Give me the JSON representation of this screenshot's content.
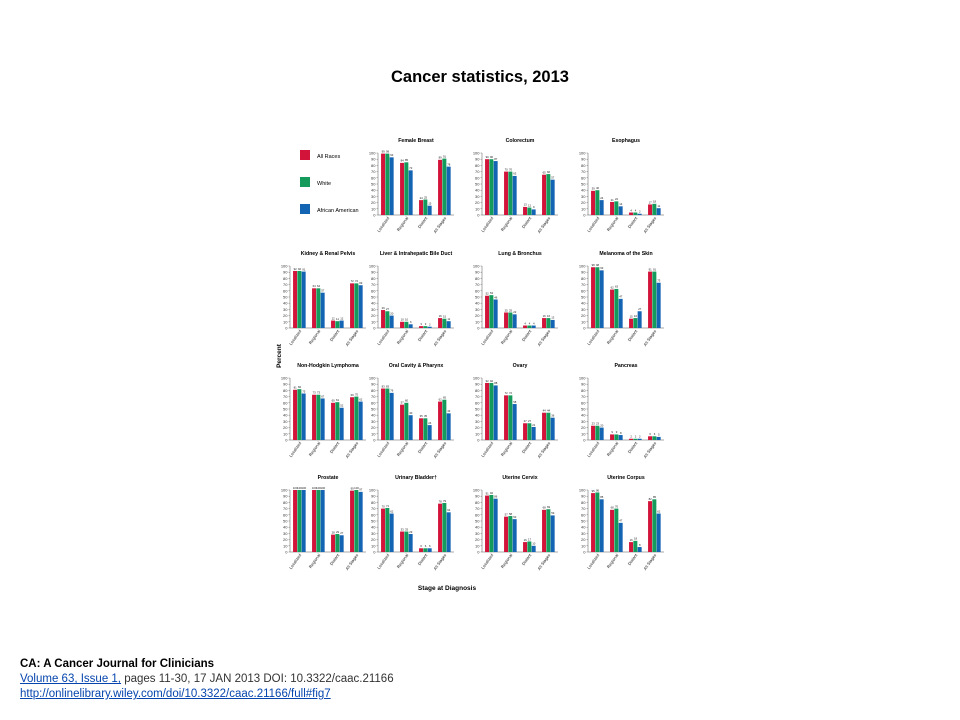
{
  "slide": {
    "title": "Cancer statistics, 2013"
  },
  "citation": {
    "journal": "CA: A Cancer Journal for Clinicians",
    "volume_link": "Volume 63, Issue 1,",
    "details": " pages 11-30, 17 JAN 2013 DOI: 10.3322/caac.21166",
    "url": "http://onlinelibrary.wiley.com/doi/10.3322/caac.21166/full#fig7"
  },
  "colors": {
    "all_races": "#d2143a",
    "white": "#149a5a",
    "african_american": "#1464b4"
  },
  "chart_data": {
    "type": "bar",
    "ylabel": "Percent",
    "xlabel": "Stage at Diagnosis",
    "ylim": [
      0,
      100
    ],
    "y_ticks": [
      0,
      10,
      20,
      30,
      40,
      50,
      60,
      70,
      80,
      90,
      100
    ],
    "categories": [
      "Localized",
      "Regional",
      "Distant",
      "All Stages"
    ],
    "legend": [
      "All Races",
      "White",
      "African American"
    ],
    "panels": [
      {
        "title": "Female Breast",
        "series": [
          {
            "name": "All Races",
            "values": [
              99,
              84,
              24,
              89
            ]
          },
          {
            "name": "White",
            "values": [
              99,
              85,
              25,
              91
            ]
          },
          {
            "name": "African American",
            "values": [
              93,
              72,
              15,
              78
            ]
          }
        ]
      },
      {
        "title": "Colorectum",
        "series": [
          {
            "name": "All Races",
            "values": [
              90,
              70,
              13,
              65
            ]
          },
          {
            "name": "White",
            "values": [
              90,
              70,
              12,
              66
            ]
          },
          {
            "name": "African American",
            "values": [
              87,
              63,
              9,
              57
            ]
          }
        ]
      },
      {
        "title": "Esophagus",
        "series": [
          {
            "name": "All Races",
            "values": [
              39,
              21,
              4,
              17
            ]
          },
          {
            "name": "White",
            "values": [
              40,
              22,
              4,
              18
            ]
          },
          {
            "name": "African American",
            "values": [
              24,
              14,
              2,
              11
            ]
          }
        ]
      },
      {
        "title": "Kidney & Renal Pelvis",
        "series": [
          {
            "name": "All Races",
            "values": [
              92,
              64,
              12,
              72
            ]
          },
          {
            "name": "White",
            "values": [
              92,
              64,
              11,
              72
            ]
          },
          {
            "name": "African American",
            "values": [
              91,
              57,
              12,
              69
            ]
          }
        ]
      },
      {
        "title": "Liver & Intrahepatic Bile Duct",
        "series": [
          {
            "name": "All Races",
            "values": [
              29,
              10,
              3,
              16
            ]
          },
          {
            "name": "White",
            "values": [
              27,
              10,
              3,
              15
            ]
          },
          {
            "name": "African American",
            "values": [
              20,
              6,
              2,
              11
            ]
          }
        ]
      },
      {
        "title": "Lung & Bronchus",
        "series": [
          {
            "name": "All Races",
            "values": [
              52,
              25,
              4,
              16
            ]
          },
          {
            "name": "White",
            "values": [
              53,
              25,
              4,
              16
            ]
          },
          {
            "name": "African American",
            "values": [
              46,
              22,
              4,
              13
            ]
          }
        ]
      },
      {
        "title": "Melanoma of the Skin",
        "series": [
          {
            "name": "All Races",
            "values": [
              98,
              62,
              15,
              91
            ]
          },
          {
            "name": "White",
            "values": [
              98,
              63,
              16,
              91
            ]
          },
          {
            "name": "African American",
            "values": [
              93,
              47,
              27,
              73
            ]
          }
        ]
      },
      {
        "title": "Non-Hodgkin Lymphoma",
        "series": [
          {
            "name": "All Races",
            "values": [
              81,
              73,
              60,
              69
            ]
          },
          {
            "name": "White",
            "values": [
              82,
              73,
              61,
              70
            ]
          },
          {
            "name": "African American",
            "values": [
              75,
              67,
              52,
              62
            ]
          }
        ]
      },
      {
        "title": "Oral Cavity & Pharynx",
        "series": [
          {
            "name": "All Races",
            "values": [
              83,
              57,
              35,
              62
            ]
          },
          {
            "name": "White",
            "values": [
              83,
              60,
              35,
              65
            ]
          },
          {
            "name": "African American",
            "values": [
              76,
              40,
              24,
              43
            ]
          }
        ]
      },
      {
        "title": "Ovary",
        "series": [
          {
            "name": "All Races",
            "values": [
              92,
              72,
              27,
              44
            ]
          },
          {
            "name": "White",
            "values": [
              92,
              72,
              27,
              44
            ]
          },
          {
            "name": "African American",
            "values": [
              88,
              58,
              21,
              36
            ]
          }
        ]
      },
      {
        "title": "Pancreas",
        "series": [
          {
            "name": "All Races",
            "values": [
              23,
              9,
              2,
              6
            ]
          },
          {
            "name": "White",
            "values": [
              23,
              9,
              2,
              6
            ]
          },
          {
            "name": "African American",
            "values": [
              20,
              8,
              2,
              5
            ]
          }
        ]
      },
      {
        "title": "Prostate",
        "series": [
          {
            "name": "All Races",
            "values": [
              100,
              100,
              28,
              99
            ]
          },
          {
            "name": "White",
            "values": [
              100,
              100,
              29,
              100
            ]
          },
          {
            "name": "African American",
            "values": [
              100,
              100,
              27,
              97
            ]
          }
        ]
      },
      {
        "title": "Urinary Bladder†",
        "series": [
          {
            "name": "All Races",
            "values": [
              70,
              33,
              6,
              78
            ]
          },
          {
            "name": "White",
            "values": [
              71,
              33,
              6,
              79
            ]
          },
          {
            "name": "African American",
            "values": [
              62,
              29,
              6,
              64
            ]
          }
        ]
      },
      {
        "title": "Uterine Cervix",
        "series": [
          {
            "name": "All Races",
            "values": [
              91,
              57,
              16,
              68
            ]
          },
          {
            "name": "White",
            "values": [
              92,
              58,
              17,
              69
            ]
          },
          {
            "name": "African American",
            "values": [
              86,
              53,
              10,
              59
            ]
          }
        ]
      },
      {
        "title": "Uterine Corpus",
        "series": [
          {
            "name": "All Races",
            "values": [
              95,
              68,
              16,
              82
            ]
          },
          {
            "name": "White",
            "values": [
              96,
              70,
              18,
              85
            ]
          },
          {
            "name": "African American",
            "values": [
              85,
              47,
              8,
              62
            ]
          }
        ]
      }
    ]
  }
}
